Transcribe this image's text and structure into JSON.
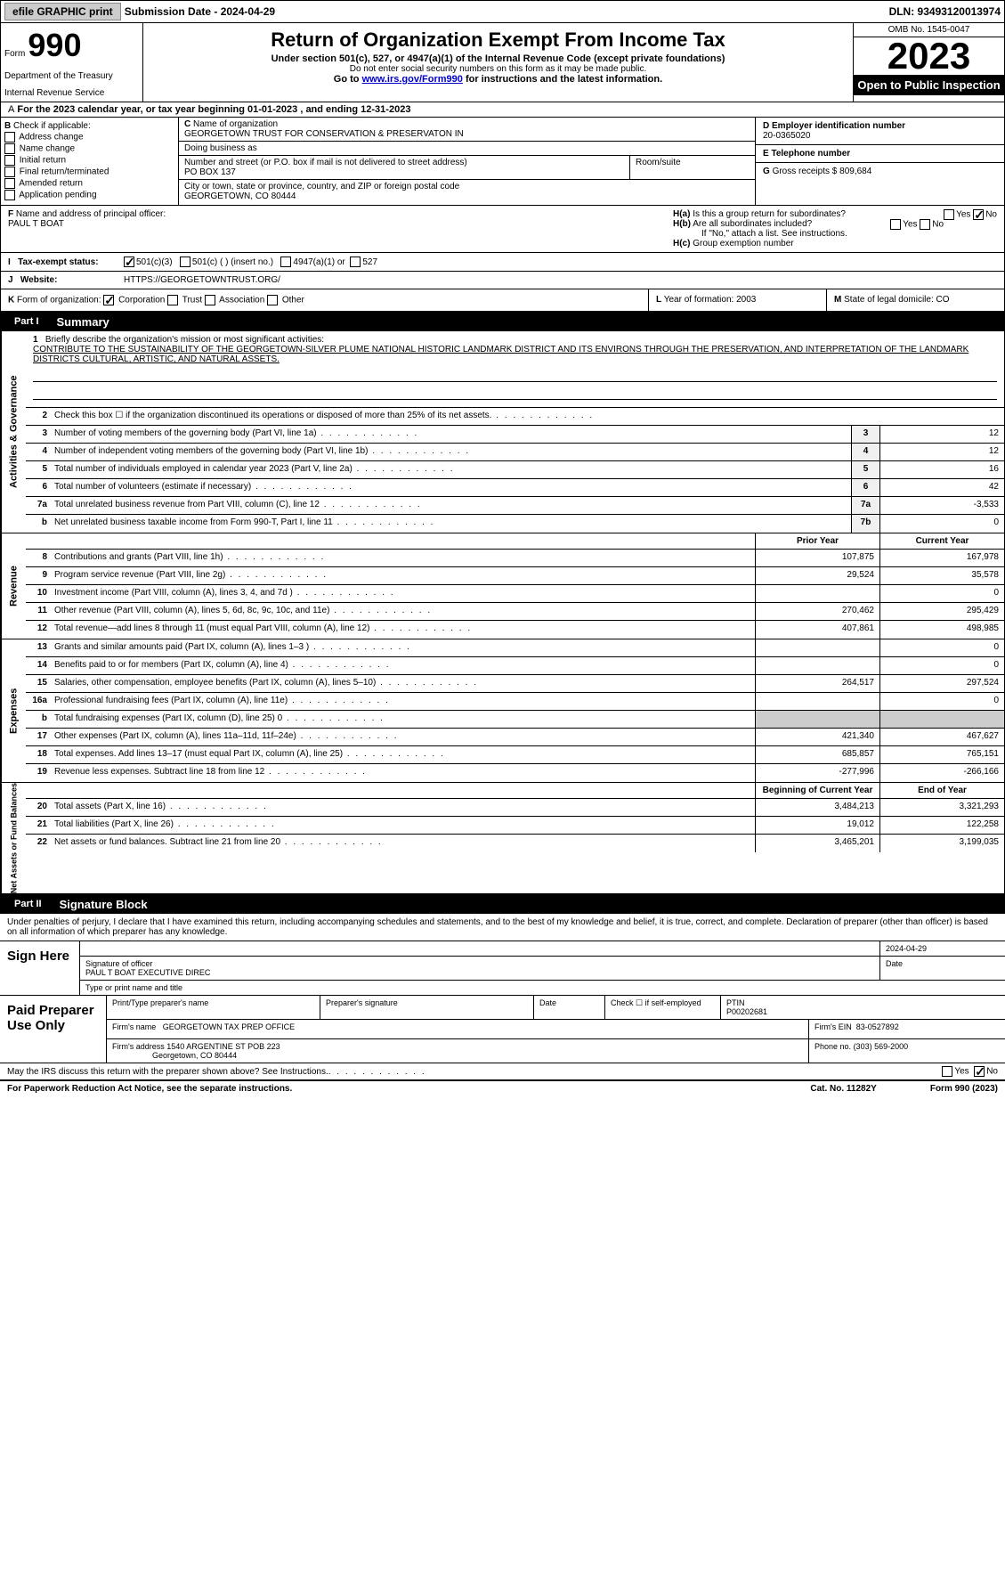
{
  "topbar": {
    "efile_btn": "efile GRAPHIC print",
    "sub_label": "Submission Date - 2024-04-29",
    "dln": "DLN: 93493120013974"
  },
  "header": {
    "form_label": "Form",
    "form_number": "990",
    "dept": "Department of the Treasury",
    "irs": "Internal Revenue Service",
    "title": "Return of Organization Exempt From Income Tax",
    "sub": "Under section 501(c), 527, or 4947(a)(1) of the Internal Revenue Code (except private foundations)",
    "sub2": "Do not enter social security numbers on this form as it may be made public.",
    "sub3_pre": "Go to ",
    "sub3_link": "www.irs.gov/Form990",
    "sub3_post": " for instructions and the latest information.",
    "omb": "OMB No. 1545-0047",
    "year": "2023",
    "open": "Open to Public Inspection"
  },
  "tax_year": "For the 2023 calendar year, or tax year beginning 01-01-2023   , and ending 12-31-2023",
  "box_b": {
    "label": "Check if applicable:",
    "addr": "Address change",
    "name": "Name change",
    "initial": "Initial return",
    "final": "Final return/terminated",
    "amended": "Amended return",
    "app": "Application pending",
    "b_letter": "B",
    "a_letter": "A"
  },
  "box_c": {
    "name_label": "Name of organization",
    "name": "GEORGETOWN TRUST FOR CONSERVATION & PRESERVATON IN",
    "dba_label": "Doing business as",
    "addr_label": "Number and street (or P.O. box if mail is not delivered to street address)",
    "addr": "PO BOX 137",
    "suite_label": "Room/suite",
    "city_label": "City or town, state or province, country, and ZIP or foreign postal code",
    "city": "GEORGETOWN, CO  80444",
    "c_letter": "C"
  },
  "box_d": {
    "ein_label": "Employer identification number",
    "ein": "20-0365020",
    "phone_label": "Telephone number",
    "gross_label": "Gross receipts $",
    "gross": "809,684",
    "d_letter": "D",
    "e_letter": "E",
    "g_letter": "G"
  },
  "officer": {
    "label": "Name and address of principal officer:",
    "name": "PAUL T BOAT",
    "f_letter": "F",
    "h_a": "Is this a group return for subordinates?",
    "h_b": "Are all subordinates included?",
    "h_note": "If \"No,\" attach a list. See instructions.",
    "h_c": "Group exemption number",
    "h_label_a": "H(a)",
    "h_label_b": "H(b)",
    "h_label_c": "H(c)",
    "yes": "Yes",
    "no": "No"
  },
  "status": {
    "i_letter": "I",
    "label": "Tax-exempt status:",
    "c3": "501(c)(3)",
    "c_insert": "501(c) (  ) (insert no.)",
    "a4947": "4947(a)(1) or",
    "s527": "527"
  },
  "website": {
    "j_letter": "J",
    "label": "Website:",
    "url": "HTTPS://GEORGETOWNTRUST.ORG/"
  },
  "k_row": {
    "k_letter": "K",
    "label": "Form of organization:",
    "corp": "Corporation",
    "trust": "Trust",
    "assoc": "Association",
    "other": "Other",
    "l_label": "Year of formation:",
    "l_val": "2003",
    "l_letter": "L",
    "m_label": "State of legal domicile:",
    "m_val": "CO",
    "m_letter": "M"
  },
  "part1": {
    "label": "Part I",
    "title": "Summary"
  },
  "mission": {
    "num": "1",
    "label": "Briefly describe the organization's mission or most significant activities:",
    "text": "CONTRIBUTE TO THE SUSTAINABILITY OF THE GEORGETOWN-SILVER PLUME NATIONAL HISTORIC LANDMARK DISTRICT AND ITS ENVIRONS THROUGH THE PRESERVATION, AND INTERPRETATION OF THE LANDMARK DISTRICTS CULTURAL, ARTISTIC, AND NATURAL ASSETS."
  },
  "gov_lines": [
    {
      "num": "2",
      "text": "Check this box ☐ if the organization discontinued its operations or disposed of more than 25% of its net assets.",
      "box": "",
      "val": ""
    },
    {
      "num": "3",
      "text": "Number of voting members of the governing body (Part VI, line 1a)",
      "box": "3",
      "val": "12"
    },
    {
      "num": "4",
      "text": "Number of independent voting members of the governing body (Part VI, line 1b)",
      "box": "4",
      "val": "12"
    },
    {
      "num": "5",
      "text": "Total number of individuals employed in calendar year 2023 (Part V, line 2a)",
      "box": "5",
      "val": "16"
    },
    {
      "num": "6",
      "text": "Total number of volunteers (estimate if necessary)",
      "box": "6",
      "val": "42"
    },
    {
      "num": "7a",
      "text": "Total unrelated business revenue from Part VIII, column (C), line 12",
      "box": "7a",
      "val": "-3,533"
    },
    {
      "num": "b",
      "text": "Net unrelated business taxable income from Form 990-T, Part I, line 11",
      "box": "7b",
      "val": "0"
    }
  ],
  "year_headers": {
    "prior": "Prior Year",
    "current": "Current Year"
  },
  "rev_lines": [
    {
      "num": "8",
      "text": "Contributions and grants (Part VIII, line 1h)",
      "prior": "107,875",
      "current": "167,978"
    },
    {
      "num": "9",
      "text": "Program service revenue (Part VIII, line 2g)",
      "prior": "29,524",
      "current": "35,578"
    },
    {
      "num": "10",
      "text": "Investment income (Part VIII, column (A), lines 3, 4, and 7d )",
      "prior": "",
      "current": "0"
    },
    {
      "num": "11",
      "text": "Other revenue (Part VIII, column (A), lines 5, 6d, 8c, 9c, 10c, and 11e)",
      "prior": "270,462",
      "current": "295,429"
    },
    {
      "num": "12",
      "text": "Total revenue—add lines 8 through 11 (must equal Part VIII, column (A), line 12)",
      "prior": "407,861",
      "current": "498,985"
    }
  ],
  "exp_lines": [
    {
      "num": "13",
      "text": "Grants and similar amounts paid (Part IX, column (A), lines 1–3 )",
      "prior": "",
      "current": "0"
    },
    {
      "num": "14",
      "text": "Benefits paid to or for members (Part IX, column (A), line 4)",
      "prior": "",
      "current": "0"
    },
    {
      "num": "15",
      "text": "Salaries, other compensation, employee benefits (Part IX, column (A), lines 5–10)",
      "prior": "264,517",
      "current": "297,524"
    },
    {
      "num": "16a",
      "text": "Professional fundraising fees (Part IX, column (A), line 11e)",
      "prior": "",
      "current": "0"
    },
    {
      "num": "b",
      "text": "Total fundraising expenses (Part IX, column (D), line 25) 0",
      "prior": "grey",
      "current": "grey"
    },
    {
      "num": "17",
      "text": "Other expenses (Part IX, column (A), lines 11a–11d, 11f–24e)",
      "prior": "421,340",
      "current": "467,627"
    },
    {
      "num": "18",
      "text": "Total expenses. Add lines 13–17 (must equal Part IX, column (A), line 25)",
      "prior": "685,857",
      "current": "765,151"
    },
    {
      "num": "19",
      "text": "Revenue less expenses. Subtract line 18 from line 12",
      "prior": "-277,996",
      "current": "-266,166"
    }
  ],
  "net_headers": {
    "begin": "Beginning of Current Year",
    "end": "End of Year"
  },
  "net_lines": [
    {
      "num": "20",
      "text": "Total assets (Part X, line 16)",
      "prior": "3,484,213",
      "current": "3,321,293"
    },
    {
      "num": "21",
      "text": "Total liabilities (Part X, line 26)",
      "prior": "19,012",
      "current": "122,258"
    },
    {
      "num": "22",
      "text": "Net assets or fund balances. Subtract line 21 from line 20",
      "prior": "3,465,201",
      "current": "3,199,035"
    }
  ],
  "vert_labels": {
    "gov": "Activities & Governance",
    "rev": "Revenue",
    "exp": "Expenses",
    "net": "Net Assets or Fund Balances"
  },
  "part2": {
    "label": "Part II",
    "title": "Signature Block"
  },
  "sig_intro": "Under penalties of perjury, I declare that I have examined this return, including accompanying schedules and statements, and to the best of my knowledge and belief, it is true, correct, and complete. Declaration of preparer (other than officer) is based on all information of which preparer has any knowledge.",
  "sign": {
    "left": "Sign Here",
    "sig_label": "Signature of officer",
    "sig_name": "PAUL T BOAT  EXECUTIVE DIREC",
    "type_label": "Type or print name and title",
    "date_label": "Date",
    "date_val": "2024-04-29"
  },
  "preparer": {
    "left": "Paid Preparer Use Only",
    "print_label": "Print/Type preparer's name",
    "sig_label": "Preparer's signature",
    "date_label": "Date",
    "check_label": "Check ☐ if self-employed",
    "ptin_label": "PTIN",
    "ptin_val": "P00202681",
    "firm_name_label": "Firm's name",
    "firm_name": "GEORGETOWN TAX PREP OFFICE",
    "firm_ein_label": "Firm's EIN",
    "firm_ein": "83-0527892",
    "firm_addr_label": "Firm's address",
    "firm_addr": "1540 ARGENTINE ST POB 223",
    "firm_city": "Georgetown, CO  80444",
    "phone_label": "Phone no.",
    "phone": "(303) 569-2000"
  },
  "discuss": {
    "text": "May the IRS discuss this return with the preparer shown above? See Instructions.",
    "yes": "Yes",
    "no": "No"
  },
  "footer": {
    "left": "For Paperwork Reduction Act Notice, see the separate instructions.",
    "mid": "Cat. No. 11282Y",
    "right": "Form 990 (2023)"
  }
}
